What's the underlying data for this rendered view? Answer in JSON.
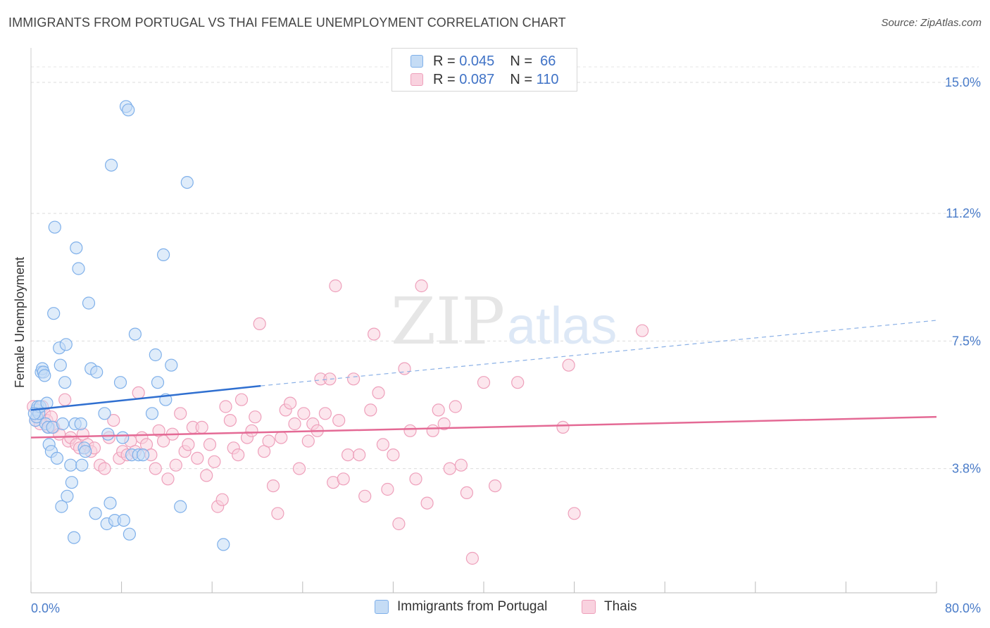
{
  "title": "IMMIGRANTS FROM PORTUGAL VS THAI FEMALE UNEMPLOYMENT CORRELATION CHART",
  "source": "Source: ZipAtlas.com",
  "watermark": {
    "zip": "ZIP",
    "atlas": "atlas"
  },
  "legend": {
    "r_label": "R =",
    "n_label": "N =",
    "series": [
      {
        "name": "Immigrants from Portugal",
        "r": "0.045",
        "n": "66",
        "color": "#7fb0ea",
        "fill": "#c5dcf5"
      },
      {
        "name": "Thais",
        "r": "0.087",
        "n": "110",
        "color": "#eea0bb",
        "fill": "#f9d2df"
      }
    ]
  },
  "chart_data": {
    "type": "scatter",
    "title": "IMMIGRANTS FROM PORTUGAL VS THAI FEMALE UNEMPLOYMENT CORRELATION CHART",
    "xlabel": "",
    "ylabel": "Female Unemployment",
    "xlim": [
      0,
      80
    ],
    "ylim": [
      0.2,
      16.0
    ],
    "x_tick_labels": [
      "0.0%",
      "80.0%"
    ],
    "y_ticks": [
      {
        "value": 3.8,
        "label": "3.8%"
      },
      {
        "value": 7.5,
        "label": "7.5%"
      },
      {
        "value": 11.2,
        "label": "11.2%"
      },
      {
        "value": 15.0,
        "label": "15.0%"
      }
    ],
    "grid": true,
    "series": [
      {
        "name": "Immigrants from Portugal",
        "color": "#7fb0ea",
        "trend": {
          "x0": 0,
          "y0": 5.5,
          "x1": 20.3,
          "y1": 6.2,
          "dash_to_x": 80,
          "dash_to_y": 8.1
        },
        "points": [
          [
            0.4,
            5.2
          ],
          [
            0.5,
            5.3
          ],
          [
            0.5,
            5.5
          ],
          [
            0.6,
            5.6
          ],
          [
            0.7,
            5.4
          ],
          [
            0.8,
            5.6
          ],
          [
            0.9,
            6.6
          ],
          [
            1.0,
            6.7
          ],
          [
            1.1,
            6.6
          ],
          [
            1.2,
            6.5
          ],
          [
            1.3,
            5.1
          ],
          [
            1.4,
            5.7
          ],
          [
            1.5,
            5.0
          ],
          [
            1.6,
            4.5
          ],
          [
            1.8,
            4.3
          ],
          [
            1.9,
            5.0
          ],
          [
            2.0,
            8.3
          ],
          [
            2.1,
            10.8
          ],
          [
            2.3,
            4.1
          ],
          [
            2.5,
            7.3
          ],
          [
            2.6,
            6.8
          ],
          [
            2.7,
            2.7
          ],
          [
            2.8,
            5.1
          ],
          [
            3.0,
            6.3
          ],
          [
            3.1,
            7.4
          ],
          [
            3.2,
            3.0
          ],
          [
            3.5,
            3.9
          ],
          [
            3.6,
            3.4
          ],
          [
            3.8,
            1.8
          ],
          [
            3.9,
            5.1
          ],
          [
            4.0,
            10.2
          ],
          [
            4.2,
            9.6
          ],
          [
            4.4,
            5.1
          ],
          [
            4.5,
            3.9
          ],
          [
            4.7,
            4.4
          ],
          [
            4.8,
            4.3
          ],
          [
            5.1,
            8.6
          ],
          [
            5.3,
            6.7
          ],
          [
            5.7,
            2.5
          ],
          [
            5.8,
            6.6
          ],
          [
            6.5,
            5.4
          ],
          [
            6.7,
            2.2
          ],
          [
            6.8,
            4.8
          ],
          [
            7.0,
            2.8
          ],
          [
            7.1,
            12.6
          ],
          [
            7.4,
            2.3
          ],
          [
            7.9,
            6.3
          ],
          [
            8.1,
            4.7
          ],
          [
            8.2,
            2.3
          ],
          [
            8.4,
            14.3
          ],
          [
            8.6,
            14.2
          ],
          [
            8.7,
            1.9
          ],
          [
            8.9,
            4.2
          ],
          [
            9.2,
            7.7
          ],
          [
            9.5,
            4.2
          ],
          [
            9.9,
            4.2
          ],
          [
            10.7,
            5.4
          ],
          [
            11.0,
            7.1
          ],
          [
            11.2,
            6.3
          ],
          [
            11.7,
            10.0
          ],
          [
            11.9,
            5.8
          ],
          [
            12.4,
            6.8
          ],
          [
            13.2,
            2.7
          ],
          [
            13.8,
            12.1
          ],
          [
            17.0,
            1.6
          ],
          [
            0.3,
            5.4
          ]
        ]
      },
      {
        "name": "Thais",
        "color": "#eea0bb",
        "trend": {
          "x0": 0,
          "y0": 4.7,
          "x1": 80,
          "y1": 5.3
        },
        "points": [
          [
            0.2,
            5.6
          ],
          [
            0.4,
            5.2
          ],
          [
            0.6,
            5.3
          ],
          [
            0.8,
            5.1
          ],
          [
            1.0,
            5.6
          ],
          [
            1.2,
            5.4
          ],
          [
            1.4,
            5.2
          ],
          [
            1.6,
            5.0
          ],
          [
            1.8,
            5.3
          ],
          [
            2.0,
            5.0
          ],
          [
            2.5,
            4.8
          ],
          [
            3.0,
            5.8
          ],
          [
            3.3,
            4.6
          ],
          [
            3.5,
            4.7
          ],
          [
            4.0,
            4.5
          ],
          [
            4.3,
            4.4
          ],
          [
            4.6,
            4.8
          ],
          [
            5.0,
            4.5
          ],
          [
            5.3,
            4.3
          ],
          [
            5.6,
            4.4
          ],
          [
            6.1,
            3.9
          ],
          [
            6.5,
            3.8
          ],
          [
            6.9,
            4.7
          ],
          [
            7.3,
            5.2
          ],
          [
            7.8,
            4.1
          ],
          [
            8.1,
            4.3
          ],
          [
            8.5,
            4.2
          ],
          [
            8.8,
            4.6
          ],
          [
            9.2,
            4.3
          ],
          [
            9.5,
            6.0
          ],
          [
            9.8,
            4.7
          ],
          [
            10.2,
            4.5
          ],
          [
            10.6,
            4.2
          ],
          [
            11.0,
            3.8
          ],
          [
            11.3,
            4.9
          ],
          [
            11.7,
            4.6
          ],
          [
            12.1,
            3.5
          ],
          [
            12.5,
            4.8
          ],
          [
            12.8,
            3.9
          ],
          [
            13.2,
            5.4
          ],
          [
            13.6,
            4.3
          ],
          [
            13.9,
            4.5
          ],
          [
            14.3,
            5.0
          ],
          [
            14.7,
            4.1
          ],
          [
            15.1,
            5.0
          ],
          [
            15.5,
            3.6
          ],
          [
            15.8,
            4.5
          ],
          [
            16.2,
            4.0
          ],
          [
            16.5,
            2.7
          ],
          [
            16.9,
            2.9
          ],
          [
            17.2,
            5.6
          ],
          [
            17.6,
            5.2
          ],
          [
            17.9,
            4.4
          ],
          [
            18.3,
            4.2
          ],
          [
            18.6,
            5.8
          ],
          [
            19.1,
            4.7
          ],
          [
            19.5,
            4.9
          ],
          [
            19.8,
            5.3
          ],
          [
            20.2,
            8.0
          ],
          [
            20.6,
            4.3
          ],
          [
            21.0,
            4.6
          ],
          [
            21.4,
            3.3
          ],
          [
            21.8,
            2.5
          ],
          [
            22.1,
            4.7
          ],
          [
            22.5,
            5.5
          ],
          [
            22.9,
            5.7
          ],
          [
            23.3,
            5.1
          ],
          [
            23.7,
            3.8
          ],
          [
            24.1,
            5.4
          ],
          [
            24.5,
            4.6
          ],
          [
            24.9,
            5.1
          ],
          [
            25.3,
            4.9
          ],
          [
            25.6,
            6.4
          ],
          [
            26.0,
            5.4
          ],
          [
            26.4,
            6.4
          ],
          [
            26.7,
            3.4
          ],
          [
            26.9,
            9.1
          ],
          [
            27.2,
            5.2
          ],
          [
            27.6,
            3.5
          ],
          [
            28.0,
            4.2
          ],
          [
            28.5,
            6.4
          ],
          [
            29.0,
            4.2
          ],
          [
            29.5,
            3.0
          ],
          [
            30.0,
            5.5
          ],
          [
            30.3,
            7.7
          ],
          [
            30.7,
            6.0
          ],
          [
            31.1,
            4.5
          ],
          [
            31.5,
            3.2
          ],
          [
            32.0,
            4.2
          ],
          [
            32.5,
            2.2
          ],
          [
            33.0,
            6.7
          ],
          [
            33.5,
            4.9
          ],
          [
            34.0,
            3.5
          ],
          [
            34.5,
            9.1
          ],
          [
            35.0,
            2.8
          ],
          [
            35.5,
            4.9
          ],
          [
            36.0,
            5.5
          ],
          [
            36.5,
            5.1
          ],
          [
            37.0,
            3.8
          ],
          [
            37.5,
            5.6
          ],
          [
            38.0,
            3.9
          ],
          [
            38.5,
            3.1
          ],
          [
            39.0,
            1.2
          ],
          [
            40.0,
            6.3
          ],
          [
            41.0,
            3.3
          ],
          [
            43.0,
            6.3
          ],
          [
            47.0,
            5.0
          ],
          [
            47.5,
            6.8
          ],
          [
            48.0,
            2.5
          ],
          [
            54.0,
            7.8
          ]
        ]
      }
    ]
  }
}
